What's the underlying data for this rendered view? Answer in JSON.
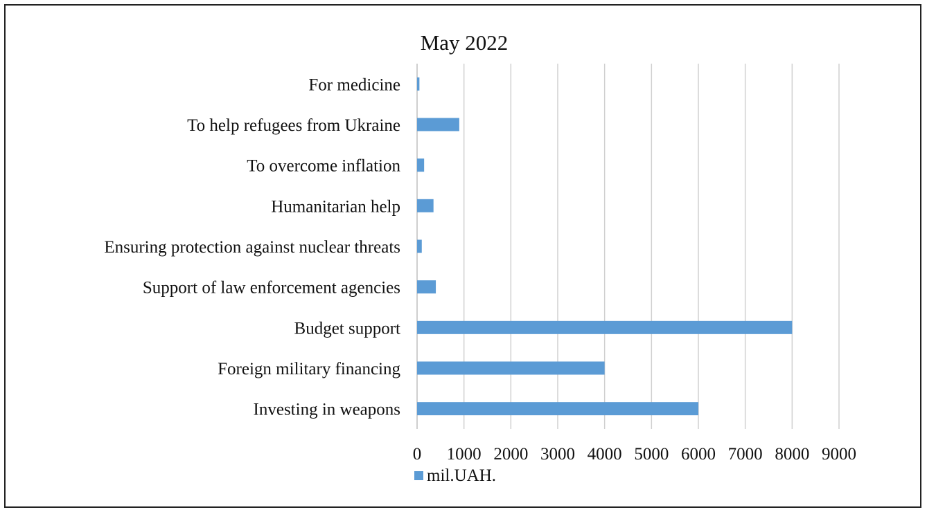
{
  "chart_data": {
    "type": "bar",
    "orientation": "horizontal",
    "title": "May 2022",
    "categories": [
      "Investing in weapons",
      "Foreign military financing",
      "Budget support",
      "Support of law enforcement agencies",
      "Ensuring protection against nuclear threats",
      "Humanitarian help",
      "To overcome inflation",
      "To help refugees from Ukraine",
      "For medicine"
    ],
    "series": [
      {
        "name": "mil.UAH.",
        "color": "#5b9bd5",
        "values": [
          6000,
          4000,
          8000,
          400,
          100,
          350,
          150,
          900,
          50
        ]
      }
    ],
    "xlim": [
      0,
      9000
    ],
    "xticks": [
      "0",
      "1000",
      "2000",
      "3000",
      "4000",
      "5000",
      "6000",
      "7000",
      "8000",
      "9000"
    ],
    "xlabel": "",
    "ylabel": "",
    "grid": "vertical",
    "legend": "bottom-left"
  }
}
